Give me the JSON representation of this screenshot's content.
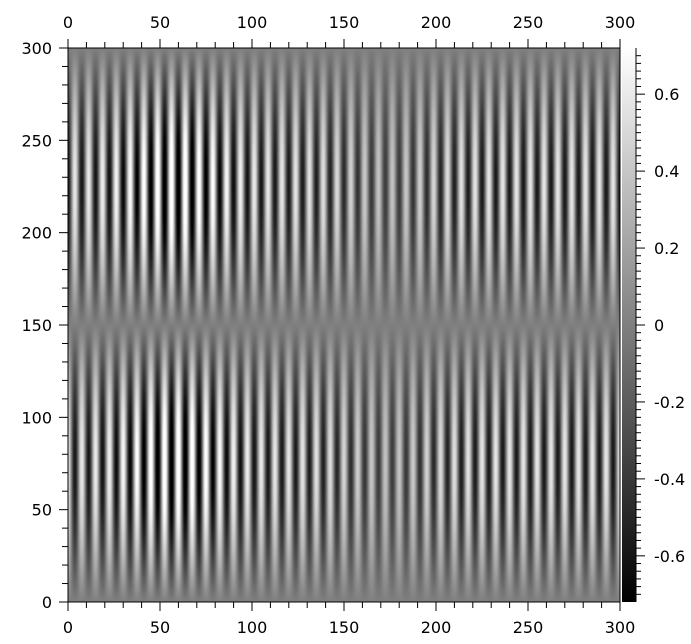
{
  "chart_data": {
    "type": "heatmap",
    "title": "",
    "xlabel": "",
    "ylabel": "",
    "xlim": [
      0,
      300
    ],
    "ylim": [
      0,
      300
    ],
    "x_ticks": [
      0,
      50,
      100,
      150,
      200,
      250,
      300
    ],
    "y_ticks": [
      0,
      50,
      100,
      150,
      200,
      250,
      300
    ],
    "x_tick_labels": [
      "0",
      "50",
      "100",
      "150",
      "200",
      "250",
      "300"
    ],
    "y_tick_labels": [
      "0",
      "50",
      "100",
      "150",
      "200",
      "250",
      "300"
    ],
    "colormap": "gray",
    "colorbar": {
      "range": [
        -0.72,
        0.72
      ],
      "ticks": [
        -0.6,
        -0.4,
        -0.2,
        0,
        0.2,
        0.4,
        0.6
      ],
      "tick_labels": [
        "-0.6",
        "-0.4",
        "-0.2",
        "0",
        "0.2",
        "0.4",
        "0.6"
      ]
    },
    "field": {
      "description_free_params": true,
      "vertical_stripe_period_x": 7.5,
      "sign_flip_y": 150,
      "horizontal_node_rows_y": [
        0,
        150,
        300
      ],
      "horizontal_antinode_rows_y": [
        75,
        225
      ],
      "peak_amplitude": 0.72,
      "beat_centers_x": [
        58,
        174
      ],
      "beat_width_x": 28
    },
    "grid": false
  }
}
